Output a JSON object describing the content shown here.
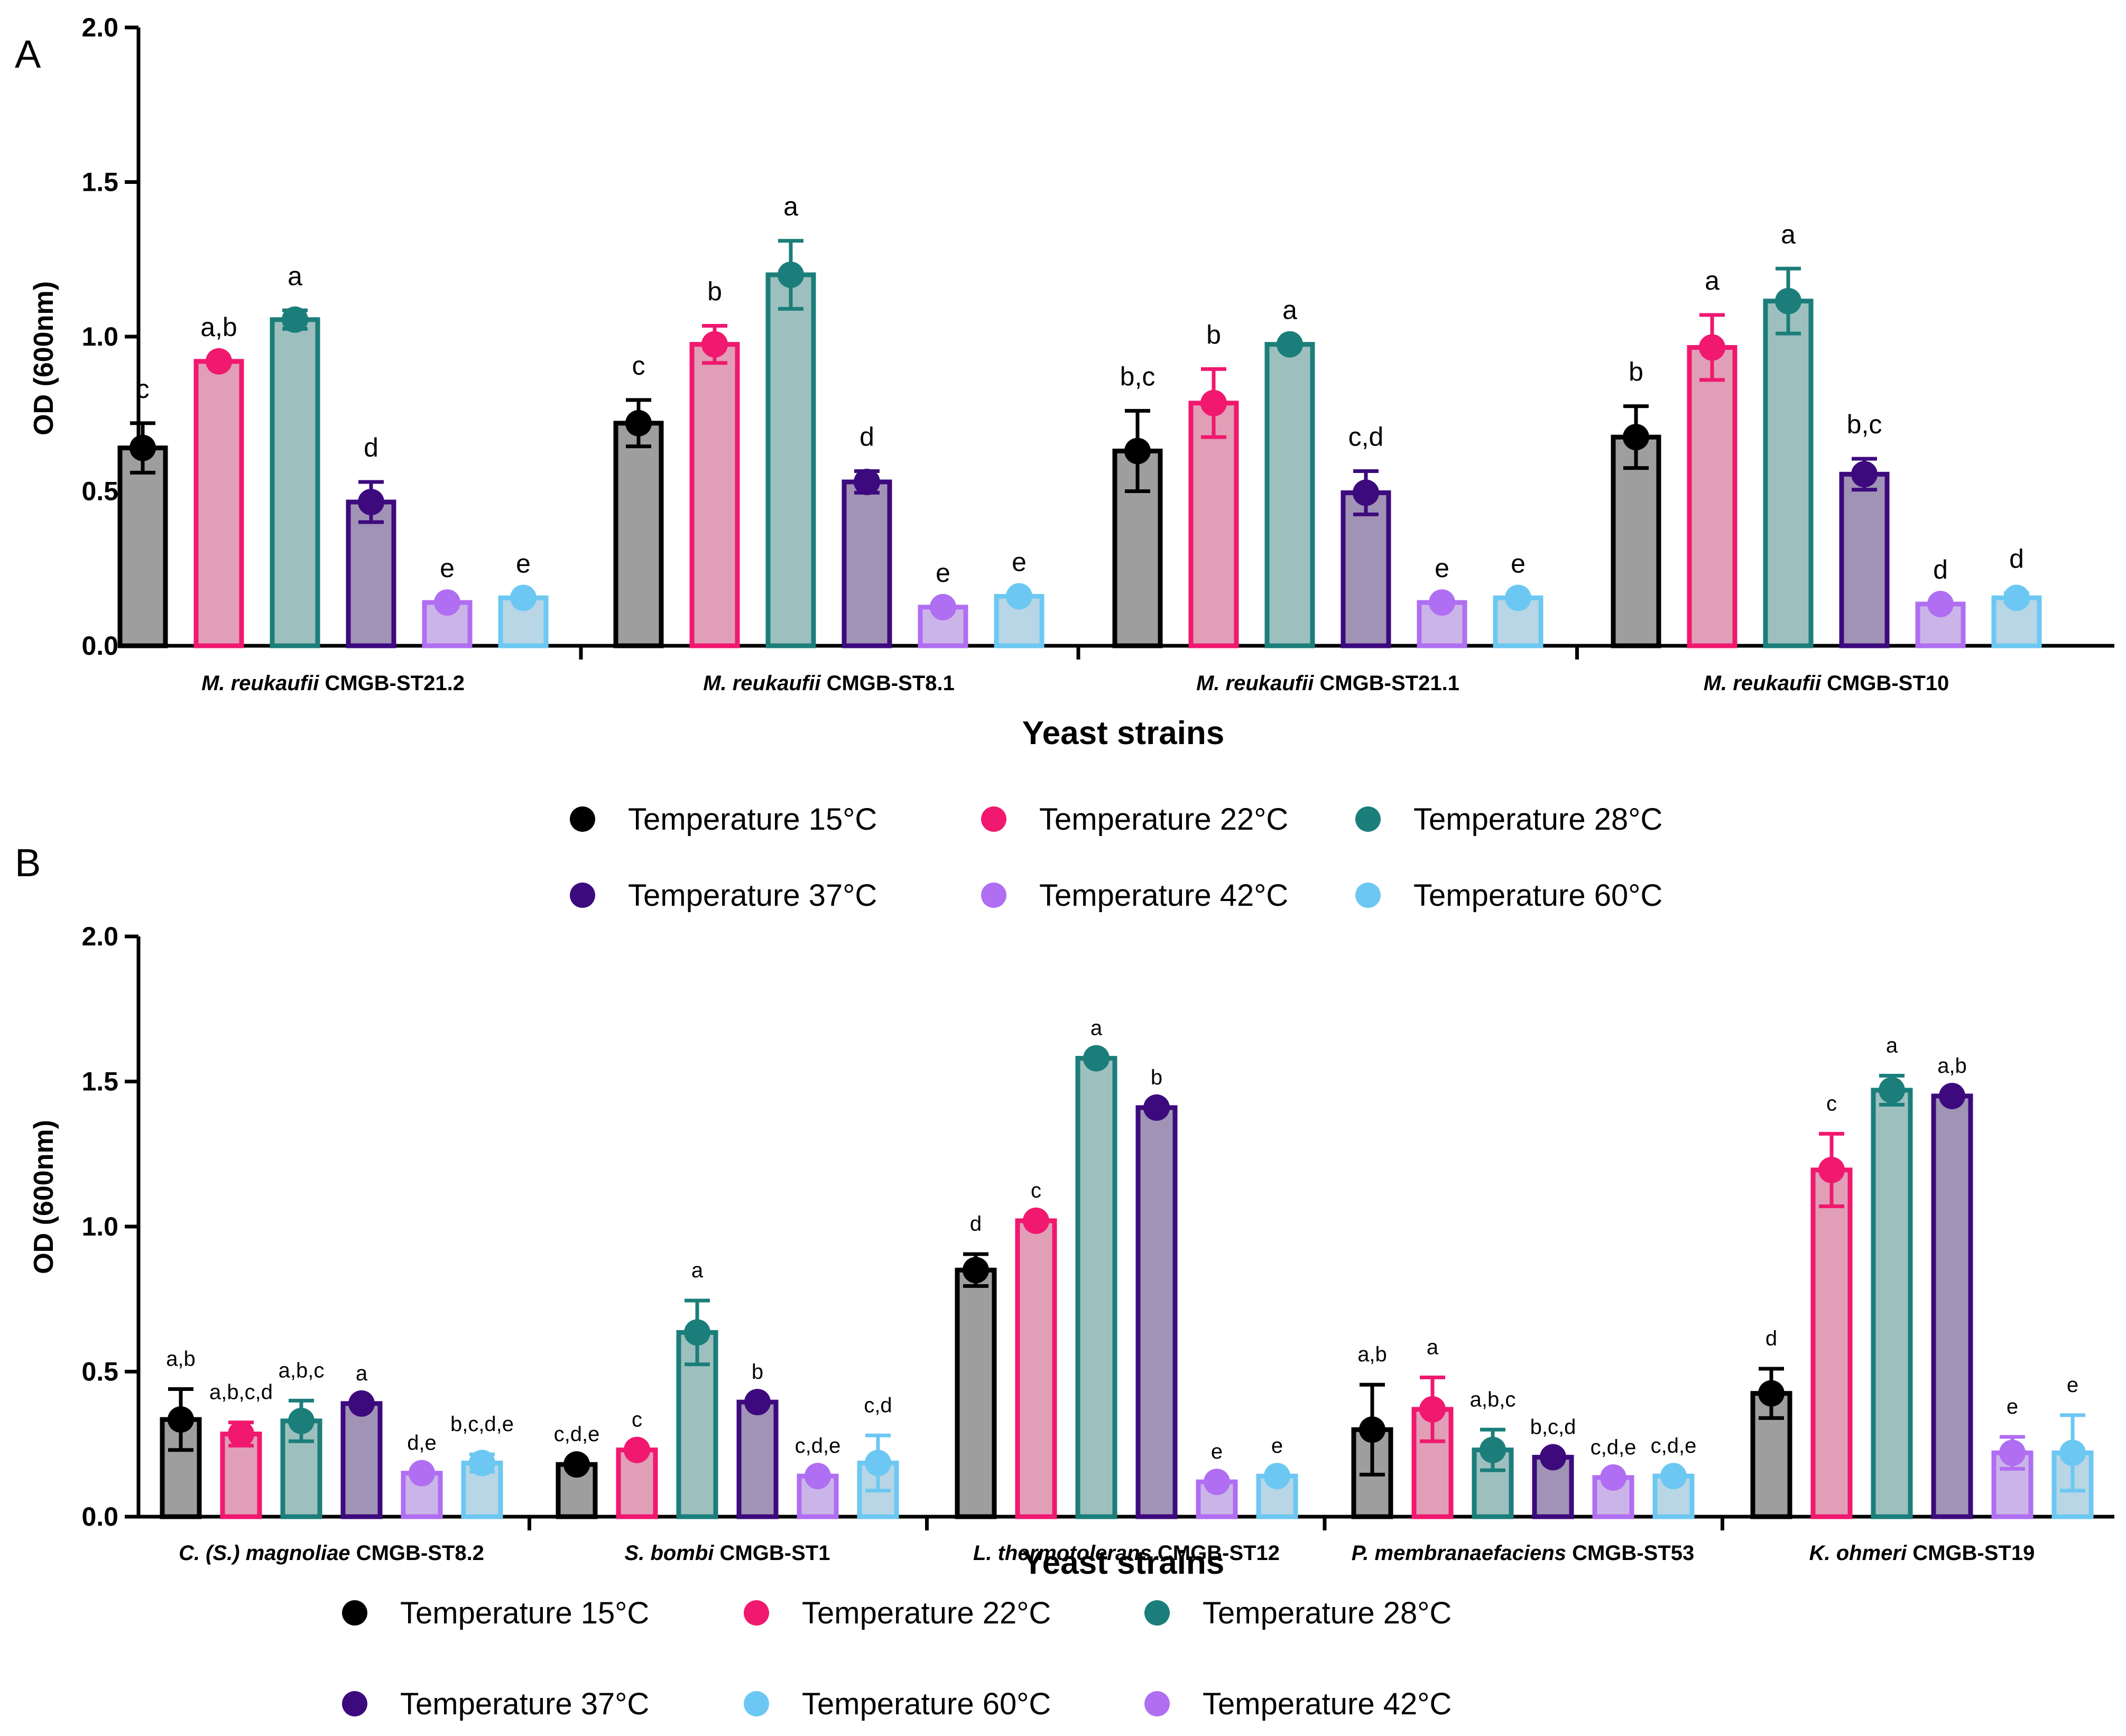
{
  "colors": {
    "t15": "#000000",
    "t22": "#f0186f",
    "t28": "#1b7e7a",
    "t37": "#3d0a7e",
    "t42": "#b06ef2",
    "t60": "#6cc8f2",
    "fill15": "#9e9e9e",
    "fill22": "#e09fb6",
    "fill28": "#9dc0bf",
    "fill37": "#a193b5",
    "fill42": "#cbb5e8",
    "fill60": "#b8d6e5"
  },
  "chart_data": [
    {
      "panel_label": "A",
      "type": "bar",
      "ylabel": "OD (600nm)",
      "xlabel": "Yeast strains",
      "ylim": [
        0,
        2.0
      ],
      "yticks": [
        "0.0",
        "0.5",
        "1.0",
        "1.5",
        "2.0"
      ],
      "categories": [
        {
          "species": "M. reukaufii",
          "strain": " CMGB-ST21.2"
        },
        {
          "species": "M. reukaufii",
          "strain": " CMGB-ST8.1"
        },
        {
          "species": "M. reukaufii",
          "strain": " CMGB-ST21.1"
        },
        {
          "species": "M. reukaufii",
          "strain": " CMGB-ST10"
        }
      ],
      "series": [
        {
          "name": "Temperature 15°C",
          "key": "t15",
          "values": [
            0.64,
            0.72,
            0.63,
            0.675
          ],
          "errors": [
            0.08,
            0.075,
            0.13,
            0.1
          ],
          "labels": [
            "c",
            "c",
            "b,c",
            "b"
          ]
        },
        {
          "name": "Temperature 22°C",
          "key": "t22",
          "values": [
            0.92,
            0.975,
            0.785,
            0.965
          ],
          "errors": [
            0.0,
            0.06,
            0.11,
            0.105
          ],
          "labels": [
            "a,b",
            "b",
            "b",
            "a"
          ]
        },
        {
          "name": "Temperature 28°C",
          "key": "t28",
          "values": [
            1.055,
            1.2,
            0.975,
            1.115
          ],
          "errors": [
            0.03,
            0.11,
            0.0,
            0.105
          ],
          "labels": [
            "a",
            "a",
            "a",
            "a"
          ]
        },
        {
          "name": "Temperature 37°C",
          "key": "t37",
          "values": [
            0.465,
            0.53,
            0.495,
            0.555
          ],
          "errors": [
            0.065,
            0.035,
            0.07,
            0.05
          ],
          "labels": [
            "d",
            "d",
            "c,d",
            "b,c"
          ]
        },
        {
          "name": "Temperature 42°C",
          "key": "t42",
          "values": [
            0.14,
            0.125,
            0.14,
            0.135
          ],
          "errors": [
            0.0,
            0.0,
            0.0,
            0.0
          ],
          "labels": [
            "e",
            "e",
            "e",
            "d"
          ]
        },
        {
          "name": "Temperature 60°C",
          "key": "t60",
          "values": [
            0.155,
            0.16,
            0.155,
            0.155
          ],
          "errors": [
            0.0,
            0.0,
            0.0,
            0.015
          ],
          "labels": [
            "e",
            "e",
            "e",
            "d"
          ]
        }
      ],
      "legend_order": [
        "t15",
        "t22",
        "t28",
        "t37",
        "t42",
        "t60"
      ]
    },
    {
      "panel_label": "B",
      "type": "bar",
      "ylabel": "OD (600nm)",
      "xlabel": "Yeast strains",
      "ylim": [
        0,
        2.0
      ],
      "yticks": [
        "0.0",
        "0.5",
        "1.0",
        "1.5",
        "2.0"
      ],
      "categories": [
        {
          "species": "C. (S.) magnoliae",
          "strain": " CMGB-ST8.2"
        },
        {
          "species": "S. bombi",
          "strain": " CMGB-ST1"
        },
        {
          "species": "L. thermotolerans",
          "strain": " CMGB-ST12"
        },
        {
          "species": "P. membranaefaciens",
          "strain": " CMGB-ST53"
        },
        {
          "species": "K. ohmeri",
          "strain": " CMGB-ST19"
        }
      ],
      "series": [
        {
          "name": "Temperature 15°C",
          "key": "t15",
          "values": [
            0.335,
            0.18,
            0.85,
            0.3,
            0.425
          ],
          "errors": [
            0.105,
            0.0,
            0.055,
            0.155,
            0.085
          ],
          "labels": [
            "a,b",
            "c,d,e",
            "d",
            "a,b",
            "d"
          ]
        },
        {
          "name": "Temperature 22°C",
          "key": "t22",
          "values": [
            0.285,
            0.23,
            1.02,
            0.37,
            1.195
          ],
          "errors": [
            0.04,
            0.0,
            0.0,
            0.11,
            0.125
          ],
          "labels": [
            "a,b,c,d",
            "c",
            "c",
            "a",
            "c"
          ]
        },
        {
          "name": "Temperature 28°C",
          "key": "t28",
          "values": [
            0.33,
            0.635,
            1.58,
            0.23,
            1.47
          ],
          "errors": [
            0.07,
            0.11,
            0.0,
            0.07,
            0.05
          ],
          "labels": [
            "a,b,c",
            "a",
            "a",
            "a,b,c",
            "a"
          ]
        },
        {
          "name": "Temperature 37°C",
          "key": "t37",
          "values": [
            0.39,
            0.395,
            1.41,
            0.205,
            1.45
          ],
          "errors": [
            0.0,
            0.0,
            0.0,
            0.0,
            0.0
          ],
          "labels": [
            "a",
            "b",
            "b",
            "b,c,d",
            "a,b"
          ]
        },
        {
          "name": "Temperature 42°C",
          "key": "t42",
          "values": [
            0.15,
            0.14,
            0.12,
            0.135,
            0.22
          ],
          "errors": [
            0.0,
            0.0,
            0.0,
            0.0,
            0.055
          ],
          "labels": [
            "d,e",
            "c,d,e",
            "e",
            "c,d,e",
            "e"
          ]
        },
        {
          "name": "Temperature 60°C",
          "key": "t60",
          "values": [
            0.185,
            0.185,
            0.14,
            0.14,
            0.22
          ],
          "errors": [
            0.03,
            0.095,
            0.0,
            0.0,
            0.13
          ],
          "labels": [
            "b,c,d,e",
            "c,d",
            "e",
            "c,d,e",
            "e"
          ]
        }
      ],
      "legend_order": [
        "t15",
        "t22",
        "t28",
        "t37",
        "t60",
        "t42"
      ]
    }
  ]
}
